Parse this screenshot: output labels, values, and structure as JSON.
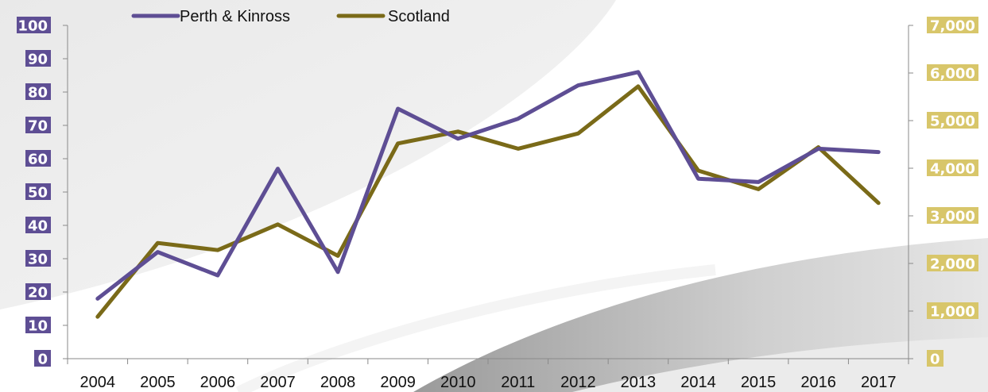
{
  "chart_data": {
    "type": "line",
    "title": "",
    "xlabel": "",
    "ylabel_left": "",
    "ylabel_right": "",
    "legend_position": "top-left",
    "grid": false,
    "colors": {
      "perth": "#5e4e94",
      "scotland": "#7a6a18",
      "left_label_bg": "#5e4e94",
      "right_label_bg": "#d8c66a"
    },
    "categories": [
      "2004",
      "2005",
      "2006",
      "2007",
      "2008",
      "2009",
      "2010",
      "2011",
      "2012",
      "2013",
      "2014",
      "2015",
      "2016",
      "2017"
    ],
    "left_axis": {
      "min": 0,
      "max": 100,
      "ticks": [
        0,
        10,
        20,
        30,
        40,
        50,
        60,
        70,
        80,
        90,
        100
      ],
      "tick_labels": [
        "0",
        "10",
        "20",
        "30",
        "40",
        "50",
        "60",
        "70",
        "80",
        "90",
        "100"
      ]
    },
    "right_axis": {
      "min": 0,
      "max": 7000,
      "ticks": [
        0,
        1000,
        2000,
        3000,
        4000,
        5000,
        6000,
        7000
      ],
      "tick_labels": [
        "0",
        "1,000",
        "2,000",
        "3,000",
        "4,000",
        "5,000",
        "6,000",
        "7,000"
      ]
    },
    "series": [
      {
        "name": "Perth & Kinross",
        "axis": "left",
        "values": [
          18,
          32,
          25,
          57,
          26,
          75,
          66,
          72,
          82,
          86,
          54,
          53,
          63,
          62
        ]
      },
      {
        "name": "Scotland",
        "axis": "right",
        "values": [
          880,
          2430,
          2280,
          2820,
          2160,
          4520,
          4770,
          4410,
          4730,
          5720,
          3950,
          3560,
          4440,
          3270
        ]
      }
    ]
  }
}
